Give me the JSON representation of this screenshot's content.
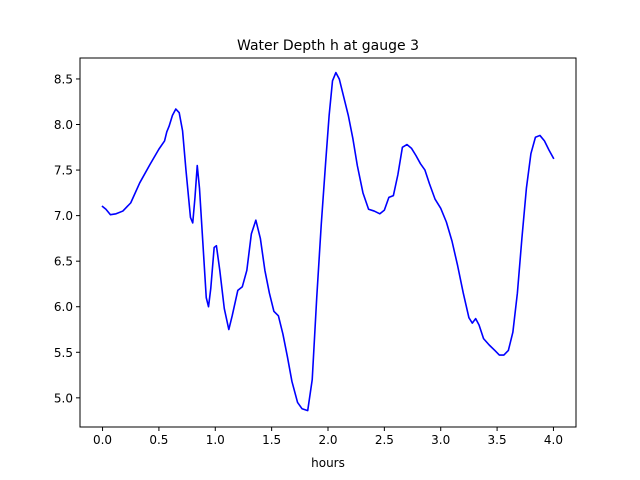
{
  "chart_data": {
    "type": "line",
    "title": "Water Depth h at gauge 3",
    "xlabel": "hours",
    "ylabel": "",
    "xlim": [
      -0.2,
      4.2
    ],
    "ylim": [
      4.68,
      8.73
    ],
    "xticks": [
      0.0,
      0.5,
      1.0,
      1.5,
      2.0,
      2.5,
      3.0,
      3.5,
      4.0
    ],
    "xtick_labels": [
      "0.0",
      "0.5",
      "1.0",
      "1.5",
      "2.0",
      "2.5",
      "3.0",
      "3.5",
      "4.0"
    ],
    "yticks": [
      5.0,
      5.5,
      6.0,
      6.5,
      7.0,
      7.5,
      8.0,
      8.5
    ],
    "ytick_labels": [
      "5.0",
      "5.5",
      "6.0",
      "6.5",
      "7.0",
      "7.5",
      "8.0",
      "8.5"
    ],
    "grid": false,
    "series": [
      {
        "color": "#0000ff",
        "points": [
          [
            0.0,
            7.1
          ],
          [
            0.03,
            7.07
          ],
          [
            0.07,
            7.01
          ],
          [
            0.12,
            7.02
          ],
          [
            0.18,
            7.05
          ],
          [
            0.25,
            7.14
          ],
          [
            0.33,
            7.36
          ],
          [
            0.42,
            7.56
          ],
          [
            0.5,
            7.73
          ],
          [
            0.55,
            7.82
          ],
          [
            0.57,
            7.92
          ],
          [
            0.59,
            7.98
          ],
          [
            0.62,
            8.1
          ],
          [
            0.65,
            8.17
          ],
          [
            0.68,
            8.13
          ],
          [
            0.71,
            7.93
          ],
          [
            0.74,
            7.5
          ],
          [
            0.78,
            6.98
          ],
          [
            0.8,
            6.92
          ],
          [
            0.82,
            7.2
          ],
          [
            0.84,
            7.55
          ],
          [
            0.86,
            7.3
          ],
          [
            0.89,
            6.7
          ],
          [
            0.92,
            6.1
          ],
          [
            0.94,
            6.0
          ],
          [
            0.96,
            6.2
          ],
          [
            0.99,
            6.65
          ],
          [
            1.01,
            6.67
          ],
          [
            1.04,
            6.4
          ],
          [
            1.08,
            5.98
          ],
          [
            1.12,
            5.75
          ],
          [
            1.15,
            5.9
          ],
          [
            1.2,
            6.18
          ],
          [
            1.24,
            6.22
          ],
          [
            1.28,
            6.4
          ],
          [
            1.32,
            6.8
          ],
          [
            1.36,
            6.95
          ],
          [
            1.4,
            6.75
          ],
          [
            1.44,
            6.4
          ],
          [
            1.48,
            6.15
          ],
          [
            1.52,
            5.95
          ],
          [
            1.56,
            5.9
          ],
          [
            1.6,
            5.7
          ],
          [
            1.64,
            5.45
          ],
          [
            1.68,
            5.18
          ],
          [
            1.73,
            4.95
          ],
          [
            1.77,
            4.88
          ],
          [
            1.82,
            4.86
          ],
          [
            1.86,
            5.2
          ],
          [
            1.9,
            6.1
          ],
          [
            1.94,
            6.9
          ],
          [
            1.98,
            7.6
          ],
          [
            2.01,
            8.1
          ],
          [
            2.04,
            8.48
          ],
          [
            2.07,
            8.57
          ],
          [
            2.1,
            8.5
          ],
          [
            2.14,
            8.3
          ],
          [
            2.18,
            8.1
          ],
          [
            2.22,
            7.85
          ],
          [
            2.26,
            7.55
          ],
          [
            2.31,
            7.25
          ],
          [
            2.36,
            7.07
          ],
          [
            2.41,
            7.05
          ],
          [
            2.46,
            7.02
          ],
          [
            2.5,
            7.06
          ],
          [
            2.54,
            7.2
          ],
          [
            2.58,
            7.22
          ],
          [
            2.62,
            7.45
          ],
          [
            2.66,
            7.75
          ],
          [
            2.7,
            7.78
          ],
          [
            2.74,
            7.74
          ],
          [
            2.78,
            7.66
          ],
          [
            2.82,
            7.57
          ],
          [
            2.86,
            7.5
          ],
          [
            2.9,
            7.35
          ],
          [
            2.95,
            7.18
          ],
          [
            3.0,
            7.08
          ],
          [
            3.05,
            6.93
          ],
          [
            3.1,
            6.72
          ],
          [
            3.15,
            6.45
          ],
          [
            3.2,
            6.15
          ],
          [
            3.25,
            5.88
          ],
          [
            3.28,
            5.82
          ],
          [
            3.31,
            5.87
          ],
          [
            3.34,
            5.8
          ],
          [
            3.38,
            5.65
          ],
          [
            3.43,
            5.58
          ],
          [
            3.48,
            5.52
          ],
          [
            3.52,
            5.47
          ],
          [
            3.56,
            5.47
          ],
          [
            3.6,
            5.52
          ],
          [
            3.64,
            5.72
          ],
          [
            3.68,
            6.15
          ],
          [
            3.72,
            6.75
          ],
          [
            3.76,
            7.3
          ],
          [
            3.8,
            7.68
          ],
          [
            3.84,
            7.86
          ],
          [
            3.88,
            7.88
          ],
          [
            3.92,
            7.82
          ],
          [
            3.96,
            7.72
          ],
          [
            4.0,
            7.63
          ]
        ]
      }
    ]
  }
}
